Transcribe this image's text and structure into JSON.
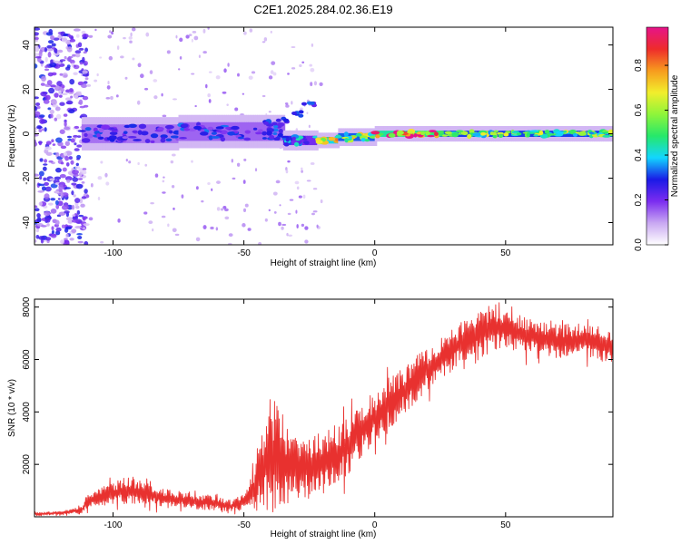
{
  "figure_title": "C2E1.2025.284.02.36.E19",
  "colors": {
    "snr_line": "#e8312f",
    "axis": "#000000",
    "colorbar_stops": [
      "#ffffff",
      "#c9a8f2",
      "#7b2cf0",
      "#1a1ae6",
      "#12d6ff",
      "#26e86a",
      "#8ff53a",
      "#f2ee2c",
      "#f79b1e",
      "#ee2b2b",
      "#e6138a"
    ]
  },
  "chart_data": [
    {
      "type": "heatmap",
      "title": "C2E1.2025.284.02.36.E19",
      "xlabel": "Height of straight line (km)",
      "ylabel": "Frequency (Hz)",
      "xlim": [
        -130,
        91
      ],
      "ylim": [
        -50,
        48
      ],
      "xticks": [
        -100,
        -50,
        0,
        50
      ],
      "yticks": [
        -40,
        -20,
        0,
        20,
        40
      ],
      "xtick_labels": [
        "-100",
        "-50",
        "0",
        "50"
      ],
      "ytick_labels": [
        "-40",
        "-20",
        "0",
        "20",
        "40"
      ],
      "colorbar": {
        "label": "Normalized spectral amplitude",
        "range": [
          0,
          0.97
        ],
        "ticks": [
          0.0,
          0.2,
          0.4,
          0.6,
          0.8
        ],
        "tick_labels": [
          "0.0",
          "0.2",
          "0.4",
          "0.6",
          "0.8"
        ]
      },
      "band_segments": [
        {
          "x_start": -112,
          "x_end": -75,
          "center_hz": 0,
          "halfwidth_hz": 6,
          "amplitude": 0.28
        },
        {
          "x_start": -75,
          "x_end": -35,
          "center_hz": 1,
          "halfwidth_hz": 6,
          "amplitude": 0.3
        },
        {
          "x_start": -35,
          "x_end": -22,
          "center_hz": -3,
          "halfwidth_hz": 3,
          "amplitude": 0.4
        },
        {
          "x_start": -22,
          "x_end": -14,
          "center_hz": -3,
          "halfwidth_hz": 2,
          "amplitude": 0.8
        },
        {
          "x_start": -14,
          "x_end": 0,
          "center_hz": -1.5,
          "halfwidth_hz": 2.5,
          "amplitude": 0.65
        },
        {
          "x_start": 0,
          "x_end": 25,
          "center_hz": 0,
          "halfwidth_hz": 2,
          "amplitude": 0.9
        },
        {
          "x_start": 25,
          "x_end": 91,
          "center_hz": 0,
          "halfwidth_hz": 2,
          "amplitude": 0.62
        }
      ],
      "upper_branch": [
        {
          "x": -40,
          "y": 5
        },
        {
          "x": -35,
          "y": 6
        },
        {
          "x": -30,
          "y": 9
        },
        {
          "x": -25,
          "y": 13
        }
      ],
      "noise_region": {
        "x_start": -130,
        "x_end": -110,
        "y_range": [
          -50,
          48
        ],
        "amplitude": 0.3
      }
    },
    {
      "type": "line",
      "xlabel": "Height of straight line (km)",
      "ylabel": "SNR (10 * v/v)",
      "xlim": [
        -130,
        91
      ],
      "ylim": [
        0,
        8300
      ],
      "xticks": [
        -100,
        -50,
        0,
        50
      ],
      "yticks": [
        2000,
        4000,
        6000,
        8000
      ],
      "xtick_labels": [
        "-100",
        "-50",
        "0",
        "50"
      ],
      "ytick_labels": [
        "2000",
        "4000",
        "6000",
        "8000"
      ],
      "series": [
        {
          "name": "SNR",
          "x": [
            -130,
            -120,
            -112,
            -110,
            -100,
            -95,
            -90,
            -80,
            -70,
            -60,
            -55,
            -50,
            -47,
            -45,
            -42,
            -40,
            -38,
            -35,
            -30,
            -25,
            -20,
            -15,
            -10,
            -5,
            0,
            5,
            10,
            15,
            20,
            25,
            30,
            35,
            40,
            45,
            50,
            55,
            60,
            65,
            70,
            75,
            80,
            85,
            90
          ],
          "values": [
            100,
            150,
            250,
            600,
            900,
            1000,
            950,
            700,
            600,
            500,
            400,
            600,
            900,
            1400,
            2000,
            2400,
            2300,
            2000,
            1800,
            1900,
            2100,
            2300,
            2700,
            3300,
            3800,
            4300,
            4700,
            5200,
            5600,
            6000,
            6400,
            6800,
            7100,
            7200,
            7200,
            7000,
            6900,
            6800,
            6700,
            6700,
            6800,
            6600,
            6500
          ],
          "spread": [
            60,
            80,
            120,
            300,
            400,
            550,
            450,
            350,
            300,
            250,
            200,
            300,
            500,
            1300,
            1900,
            2200,
            2200,
            1500,
            1300,
            1200,
            1100,
            1100,
            1100,
            1000,
            1000,
            1000,
            900,
            900,
            800,
            800,
            800,
            800,
            800,
            800,
            750,
            750,
            700,
            700,
            650,
            650,
            650,
            650,
            650
          ]
        }
      ]
    }
  ]
}
